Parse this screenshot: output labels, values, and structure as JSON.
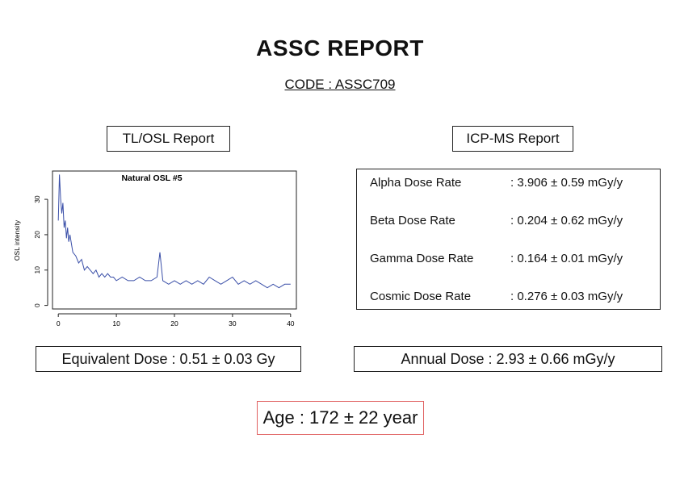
{
  "report": {
    "title": "ASSC REPORT",
    "code": "CODE : ASSC709"
  },
  "tl_osl": {
    "heading": "TL/OSL Report",
    "equivalent_dose": "Equivalent Dose : 0.51 ± 0.03 Gy"
  },
  "icp_ms": {
    "heading": "ICP-MS Report",
    "rows": [
      {
        "label": "Alpha Dose Rate",
        "value": ": 3.906 ± 0.59 mGy/y"
      },
      {
        "label": "Beta Dose Rate",
        "value": ": 0.204 ± 0.62 mGy/y"
      },
      {
        "label": "Gamma Dose Rate",
        "value": ": 0.164 ± 0.01 mGy/y"
      },
      {
        "label": "Cosmic Dose Rate",
        "value": ": 0.276 ± 0.03 mGy/y"
      }
    ],
    "annual_dose": "Annual Dose : 2.93 ± 0.66 mGy/y"
  },
  "age": "Age : 172 ± 22 year",
  "chart_data": {
    "type": "line",
    "title": "Natural OSL #5",
    "xlabel": "",
    "ylabel": "OSL intensity",
    "xlim": [
      -1,
      41
    ],
    "ylim": [
      -1,
      38
    ],
    "xticks": [
      0,
      10,
      20,
      30,
      40
    ],
    "yticks": [
      0,
      10,
      20,
      30
    ],
    "grid": false,
    "line_color": "#3a4fa8",
    "series": [
      {
        "x": [
          0,
          0.2,
          0.4,
          0.6,
          0.8,
          1,
          1.2,
          1.4,
          1.6,
          1.8,
          2,
          2.5,
          3,
          3.5,
          4,
          4.5,
          5,
          5.5,
          6,
          6.5,
          7,
          7.5,
          8,
          8.5,
          9,
          9.5,
          10,
          11,
          12,
          13,
          14,
          15,
          16,
          17,
          17.5,
          18,
          19,
          20,
          21,
          22,
          23,
          24,
          25,
          26,
          27,
          28,
          29,
          30,
          31,
          32,
          33,
          34,
          35,
          36,
          37,
          38,
          39,
          40
        ],
        "y": [
          24,
          37,
          30,
          26,
          29,
          22,
          24,
          19,
          22,
          18,
          20,
          15,
          14,
          12,
          13,
          10,
          11,
          10,
          9,
          10,
          8,
          9,
          8,
          9,
          8,
          8,
          7,
          8,
          7,
          7,
          8,
          7,
          7,
          8,
          15,
          7,
          6,
          7,
          6,
          7,
          6,
          7,
          6,
          8,
          7,
          6,
          7,
          8,
          6,
          7,
          6,
          7,
          6,
          5,
          6,
          5,
          6,
          6
        ]
      }
    ]
  }
}
